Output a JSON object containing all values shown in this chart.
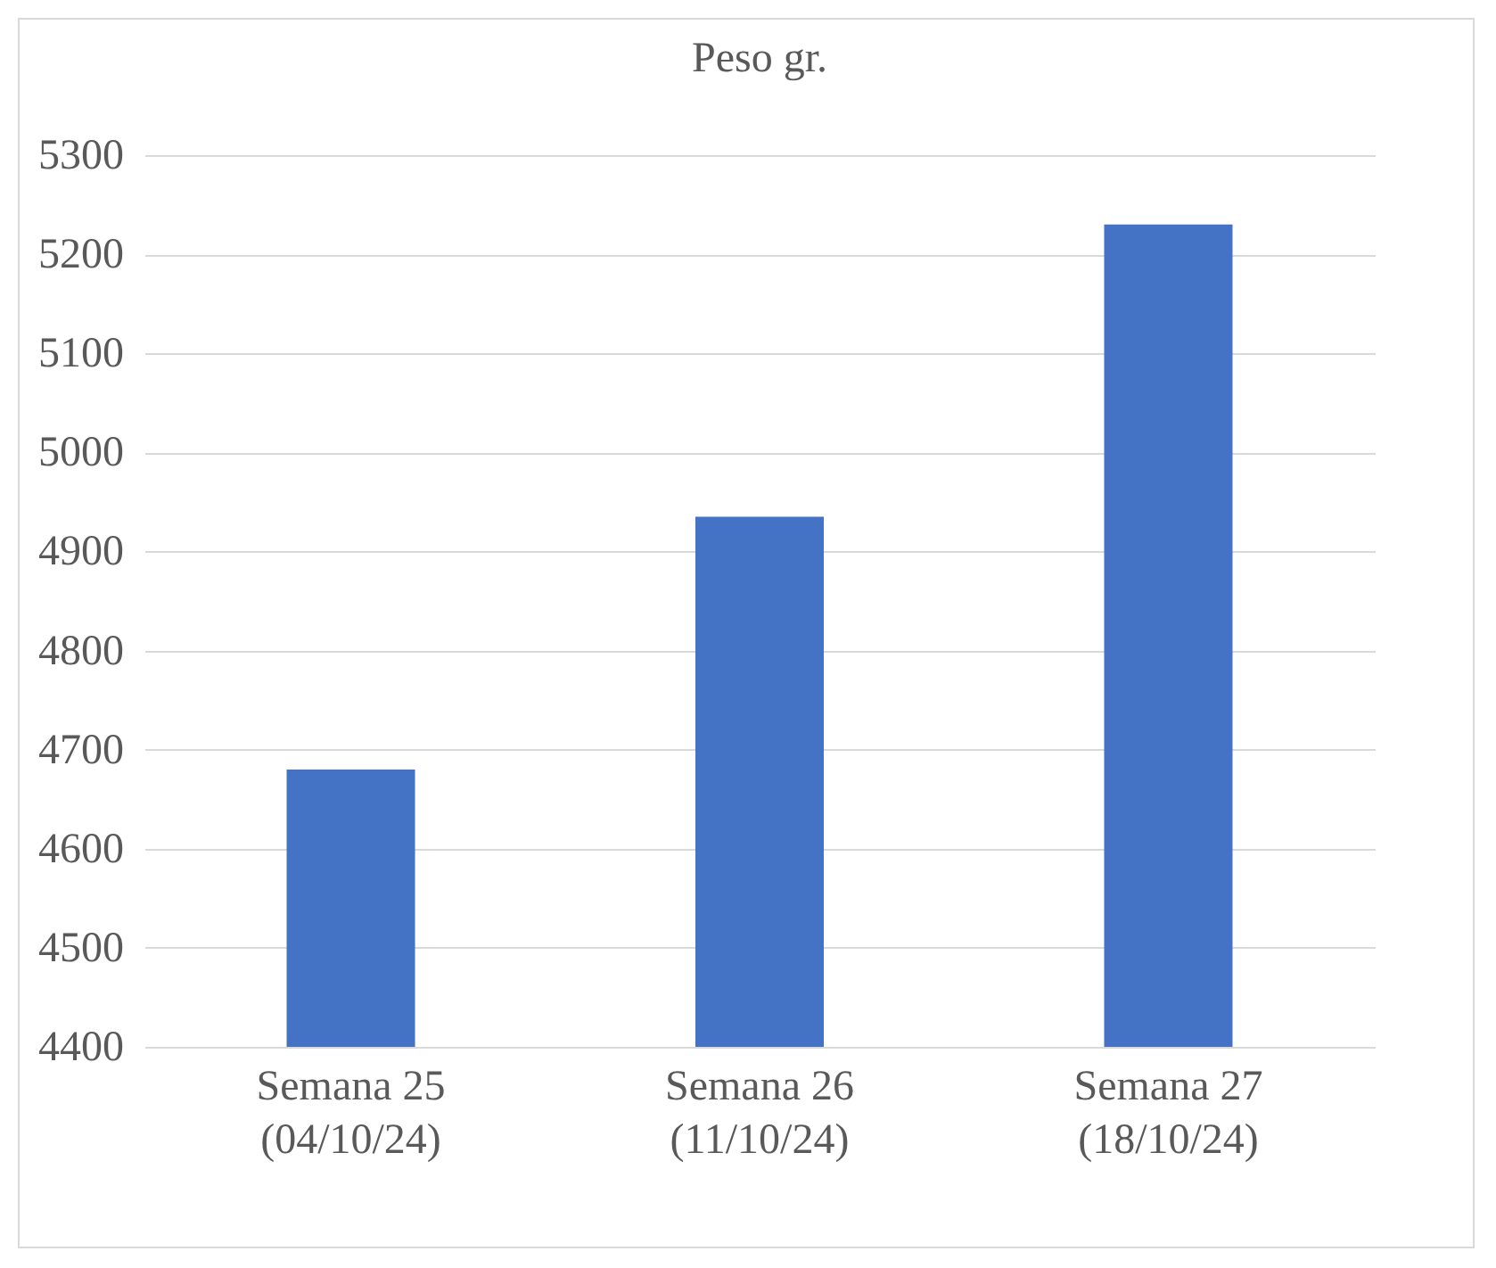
{
  "chart_data": {
    "type": "bar",
    "title": "Peso gr.",
    "categories": [
      "Semana 25\n(04/10/24)",
      "Semana 26\n(11/10/24)",
      "Semana 27\n(18/10/24)"
    ],
    "values": [
      4680,
      4935,
      5230
    ],
    "color": "#4472c4",
    "ylim": [
      4400,
      5300
    ],
    "yticks": [
      4400,
      4500,
      4600,
      4700,
      4800,
      4900,
      5000,
      5100,
      5200,
      5300
    ],
    "grid": "y"
  }
}
